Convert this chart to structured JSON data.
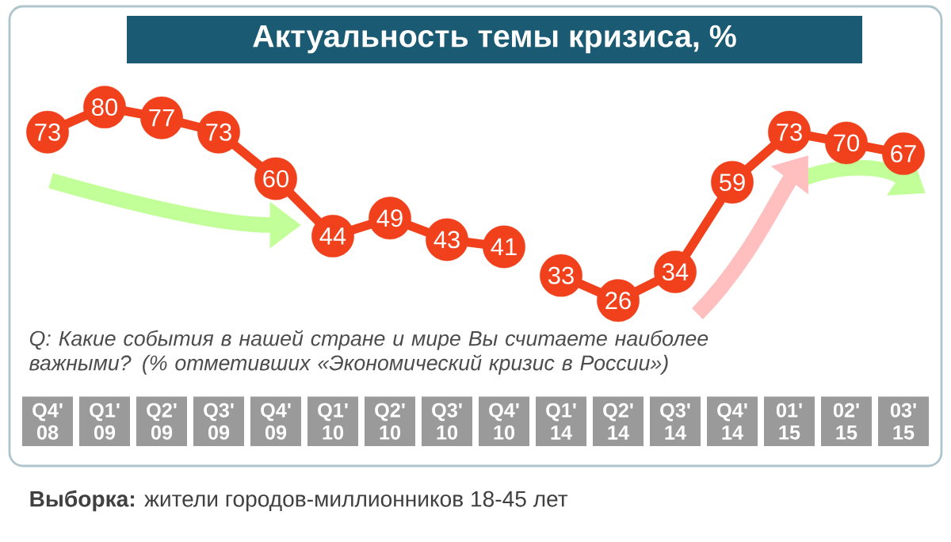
{
  "chart_data": {
    "type": "line",
    "title": "Актуальность темы кризиса, %",
    "categories": [
      "Q4' 08",
      "Q1' 09",
      "Q2' 09",
      "Q3' 09",
      "Q4' 09",
      "Q1' 10",
      "Q2' 10",
      "Q3' 10",
      "Q4' 10",
      "Q1' 14",
      "Q2' 14",
      "Q3' 14",
      "Q4' 14",
      "01' 15",
      "02' 15",
      "03' 15"
    ],
    "series": [
      {
        "color": "#f0401c",
        "values": [
          73,
          80,
          77,
          73,
          60,
          44,
          49,
          43,
          41,
          null,
          null,
          null,
          null,
          null,
          null,
          null
        ]
      },
      {
        "color": "#f0401c",
        "values": [
          null,
          null,
          null,
          null,
          null,
          null,
          null,
          null,
          null,
          33,
          26,
          34,
          59,
          73,
          70,
          67
        ]
      }
    ],
    "data_labels": true,
    "marker": "circle",
    "annotations": [
      "Q: Какие события в нашей стране и мире Вы считаете наиболее важными? (% отметивших «Экономический кризис в России»)",
      "**Выборка:** жители городов-миллионников 18-45 лет"
    ]
  }
}
